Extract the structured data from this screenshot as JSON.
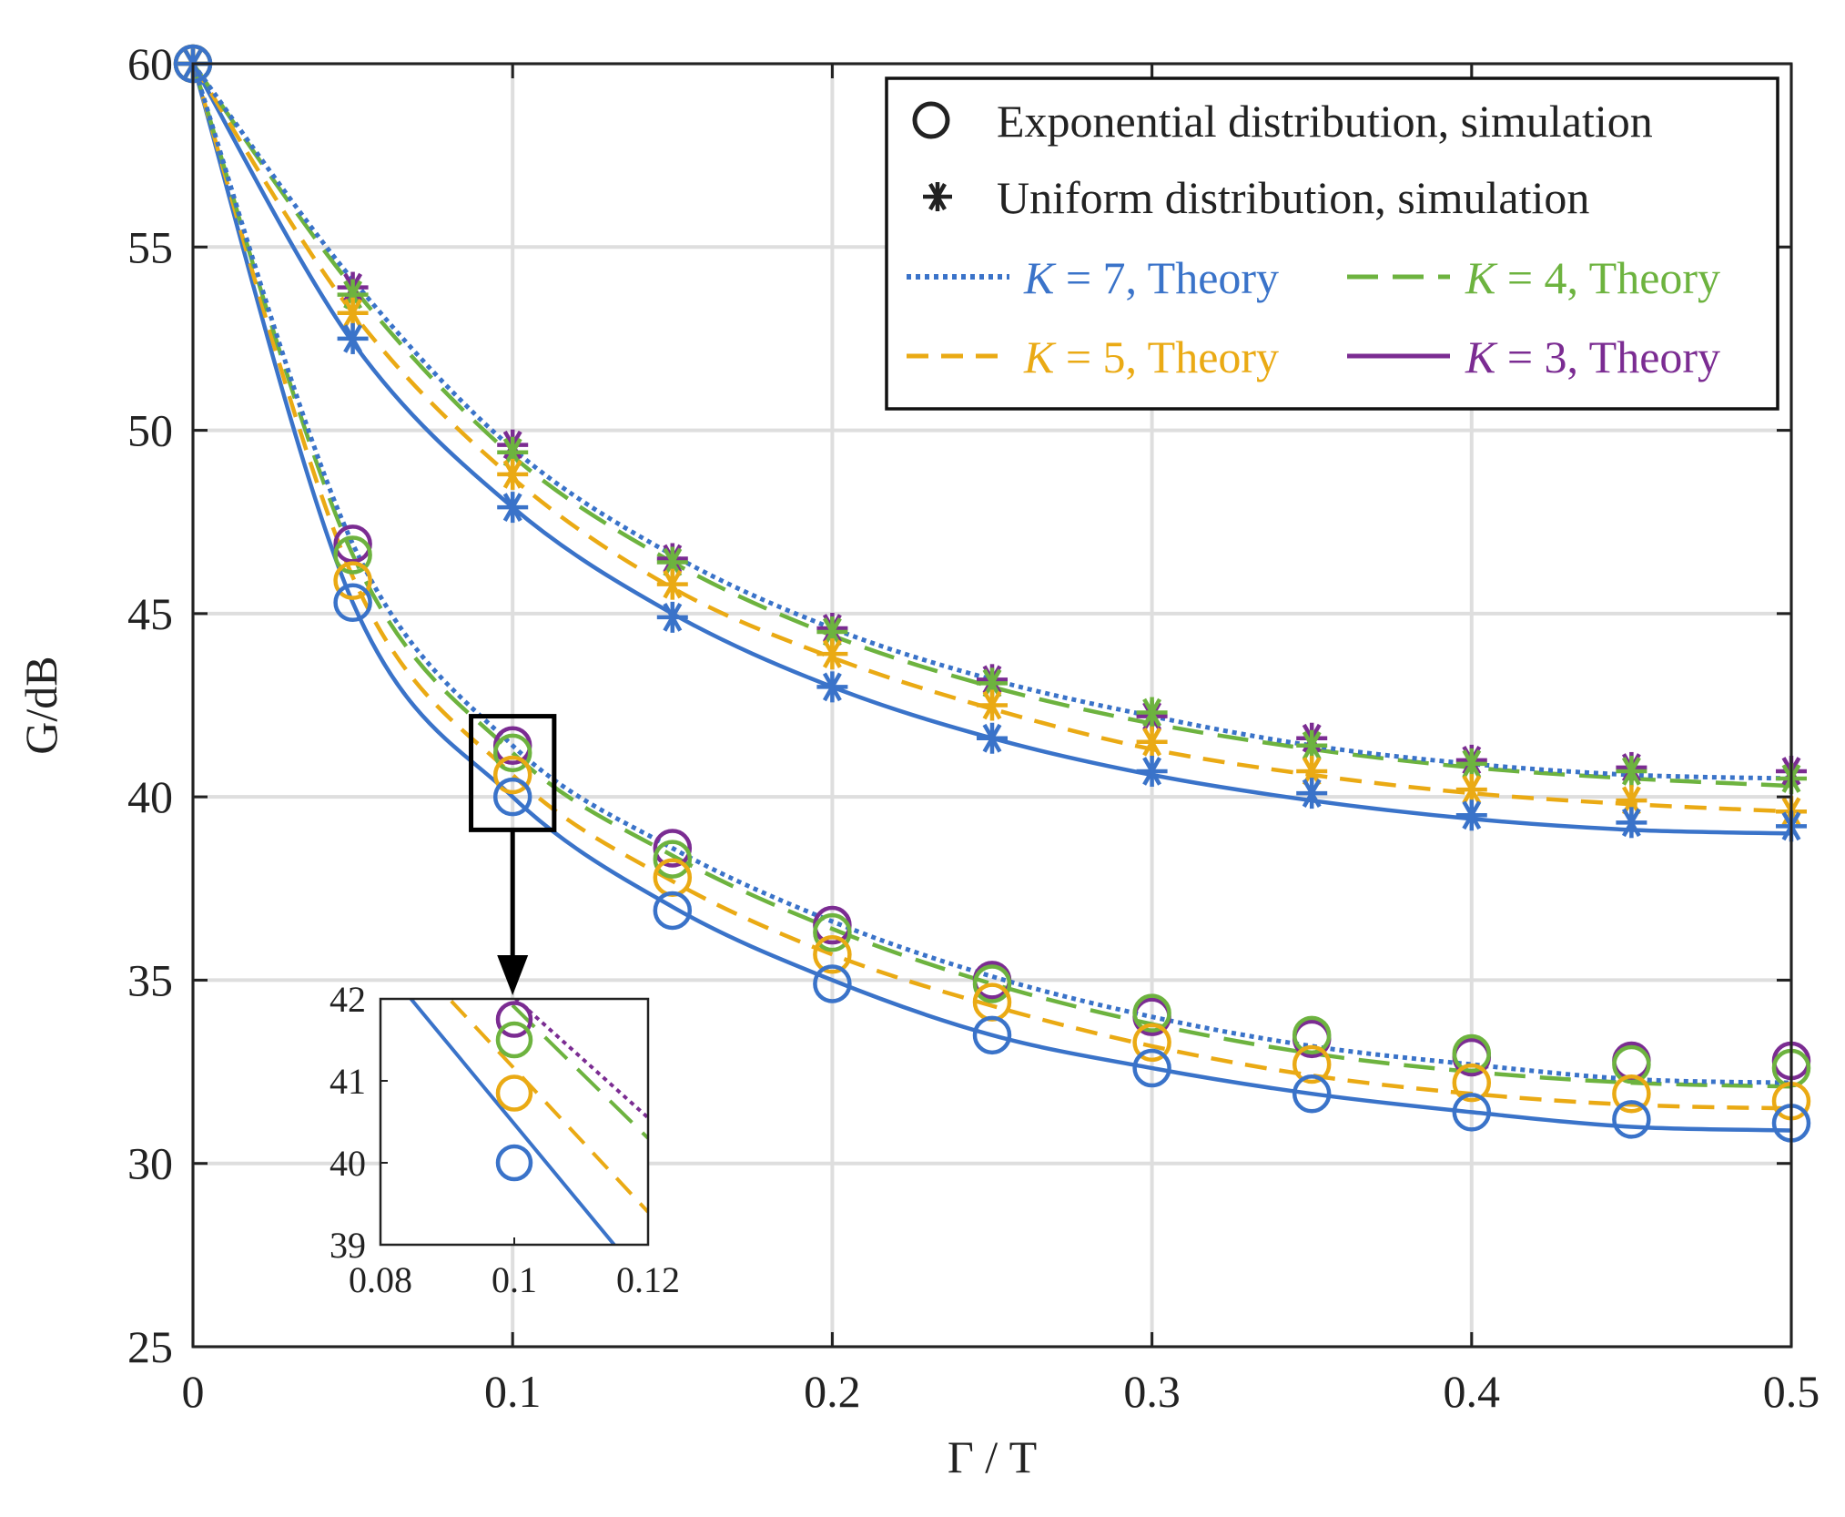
{
  "chart_data": {
    "type": "line",
    "title": "",
    "xlabel": "Γ / T",
    "ylabel": "G/dB",
    "xlim": [
      0,
      0.5
    ],
    "ylim": [
      25,
      60
    ],
    "grid": true,
    "x_ticks": [
      "0",
      "0.1",
      "0.2",
      "0.3",
      "0.4",
      "0.5"
    ],
    "y_ticks": [
      "25",
      "30",
      "35",
      "40",
      "45",
      "50",
      "55",
      "60"
    ],
    "colors": {
      "K7": "#3a73c9",
      "K5": "#eaaa14",
      "K4": "#6db33f",
      "K3": "#7b2c92",
      "axis": "#222222",
      "grid": "#dedede"
    },
    "legend": {
      "placement": "top-right",
      "marker_entries": [
        {
          "marker": "circle",
          "label": "Exponential distribution, simulation"
        },
        {
          "marker": "asterisk",
          "label": "Uniform distribution, simulation"
        }
      ],
      "theory_entries": [
        {
          "key": "K7",
          "k": "K",
          "text": " = 7, Theory",
          "dash": "dotted"
        },
        {
          "key": "K4",
          "k": "K",
          "text": " = 4, Theory",
          "dash": "longdash"
        },
        {
          "key": "K5",
          "k": "K",
          "text": " = 5, Theory",
          "dash": "dashed"
        },
        {
          "key": "K3",
          "k": "K",
          "text": " = 3, Theory",
          "dash": "solid"
        }
      ]
    },
    "x": [
      0,
      0.05,
      0.1,
      0.15,
      0.2,
      0.25,
      0.3,
      0.35,
      0.4,
      0.45,
      0.5
    ],
    "series": [
      {
        "name": "K = 7, Theory (uniform)",
        "key": "K7",
        "dash": "dotted",
        "values": [
          60,
          54.1,
          49.5,
          46.6,
          44.6,
          43.2,
          42.2,
          41.4,
          40.9,
          40.6,
          40.5
        ]
      },
      {
        "name": "K = 4, Theory (uniform)",
        "key": "K4",
        "dash": "longdash",
        "values": [
          60,
          53.9,
          49.3,
          46.4,
          44.4,
          43.0,
          42.0,
          41.3,
          40.8,
          40.5,
          40.3
        ]
      },
      {
        "name": "K = 5, Theory (uniform)",
        "key": "K5",
        "dash": "dashed",
        "values": [
          60,
          53.2,
          48.7,
          45.7,
          43.8,
          42.4,
          41.3,
          40.6,
          40.1,
          39.8,
          39.6
        ]
      },
      {
        "name": "K = 3, Theory (uniform)",
        "key": "K7",
        "dash": "solid",
        "values": [
          60,
          52.4,
          47.9,
          45.0,
          43.0,
          41.6,
          40.6,
          39.9,
          39.4,
          39.1,
          39.0
        ]
      },
      {
        "name": "K = 7, Theory (exponential)",
        "key": "K7",
        "dash": "dotted",
        "values": [
          60,
          46.9,
          41.4,
          38.6,
          36.6,
          35.1,
          34.0,
          33.2,
          32.7,
          32.3,
          32.2
        ]
      },
      {
        "name": "K = 4, Theory (exponential)",
        "key": "K4",
        "dash": "longdash",
        "values": [
          60,
          46.6,
          41.2,
          38.4,
          36.4,
          34.9,
          33.8,
          33.0,
          32.5,
          32.2,
          32.1
        ]
      },
      {
        "name": "K = 5, Theory (exponential)",
        "key": "K5",
        "dash": "dashed",
        "values": [
          60,
          46.0,
          40.6,
          37.7,
          35.7,
          34.3,
          33.2,
          32.4,
          31.9,
          31.6,
          31.5
        ]
      },
      {
        "name": "K = 3, Theory (exponential)",
        "key": "K7",
        "dash": "solid",
        "values": [
          60,
          45.3,
          40.0,
          37.0,
          35.0,
          33.5,
          32.6,
          31.9,
          31.4,
          31.0,
          30.9
        ]
      }
    ],
    "markers": [
      {
        "name": "Uniform simulation K=3",
        "shape": "asterisk",
        "key": "K3",
        "values": [
          60,
          53.9,
          49.6,
          46.5,
          44.6,
          43.2,
          42.2,
          41.6,
          41.0,
          40.8,
          40.7
        ]
      },
      {
        "name": "Uniform simulation K=4",
        "shape": "asterisk",
        "key": "K4",
        "values": [
          60,
          53.7,
          49.4,
          46.4,
          44.5,
          43.1,
          42.3,
          41.4,
          40.9,
          40.7,
          40.5
        ]
      },
      {
        "name": "Uniform simulation K=5",
        "shape": "asterisk",
        "key": "K5",
        "values": [
          60,
          53.2,
          48.8,
          45.8,
          43.9,
          42.5,
          41.5,
          40.7,
          40.2,
          39.9,
          39.6
        ]
      },
      {
        "name": "Uniform simulation K=7",
        "shape": "asterisk",
        "key": "K7",
        "values": [
          60,
          52.5,
          47.9,
          44.9,
          43.0,
          41.6,
          40.7,
          40.1,
          39.5,
          39.3,
          39.2
        ]
      },
      {
        "name": "Exponential simulation K=3",
        "shape": "circle",
        "key": "K3",
        "values": [
          60,
          46.9,
          41.4,
          38.6,
          36.5,
          35.0,
          34.0,
          33.4,
          32.9,
          32.8,
          32.8
        ]
      },
      {
        "name": "Exponential simulation K=4",
        "shape": "circle",
        "key": "K4",
        "values": [
          60,
          46.6,
          41.2,
          38.3,
          36.3,
          34.9,
          34.1,
          33.5,
          33.0,
          32.7,
          32.6
        ]
      },
      {
        "name": "Exponential simulation K=5",
        "shape": "circle",
        "key": "K5",
        "values": [
          60,
          45.9,
          40.6,
          37.8,
          35.7,
          34.4,
          33.3,
          32.7,
          32.2,
          31.9,
          31.7
        ]
      },
      {
        "name": "Exponential simulation K=7",
        "shape": "circle",
        "key": "K7",
        "values": [
          60,
          45.3,
          40.0,
          36.9,
          34.9,
          33.5,
          32.6,
          31.9,
          31.4,
          31.2,
          31.1
        ]
      }
    ],
    "inset": {
      "xlim": [
        0.08,
        0.12
      ],
      "ylim": [
        39,
        42
      ],
      "x_ticks": [
        "0.08",
        "0.1",
        "0.12"
      ],
      "y_ticks": [
        "39",
        "40",
        "41",
        "42"
      ],
      "zoom_box": {
        "x": [
          0.087,
          0.113
        ],
        "y": [
          39.1,
          42.2
        ]
      },
      "lines": [
        {
          "key": "K7",
          "dash": "solid",
          "from": [
            0.08,
            42.45
          ],
          "to": [
            0.12,
            38.5
          ]
        },
        {
          "key": "K5",
          "dash": "dashed",
          "from": [
            0.08,
            42.9
          ],
          "to": [
            0.12,
            39.4
          ]
        },
        {
          "key": "K4",
          "dash": "longdash",
          "from": [
            0.09,
            42.7
          ],
          "to": [
            0.12,
            40.3
          ]
        },
        {
          "key": "K3",
          "dash": "dotted",
          "from": [
            0.09,
            42.75
          ],
          "to": [
            0.12,
            40.55
          ]
        }
      ],
      "markers": [
        {
          "key": "K3",
          "shape": "circle",
          "x": 0.1,
          "y": 41.75
        },
        {
          "key": "K4",
          "shape": "circle",
          "x": 0.1,
          "y": 41.5
        },
        {
          "key": "K5",
          "shape": "circle",
          "x": 0.1,
          "y": 40.85
        },
        {
          "key": "K7",
          "shape": "circle",
          "x": 0.1,
          "y": 40.0
        }
      ]
    }
  }
}
